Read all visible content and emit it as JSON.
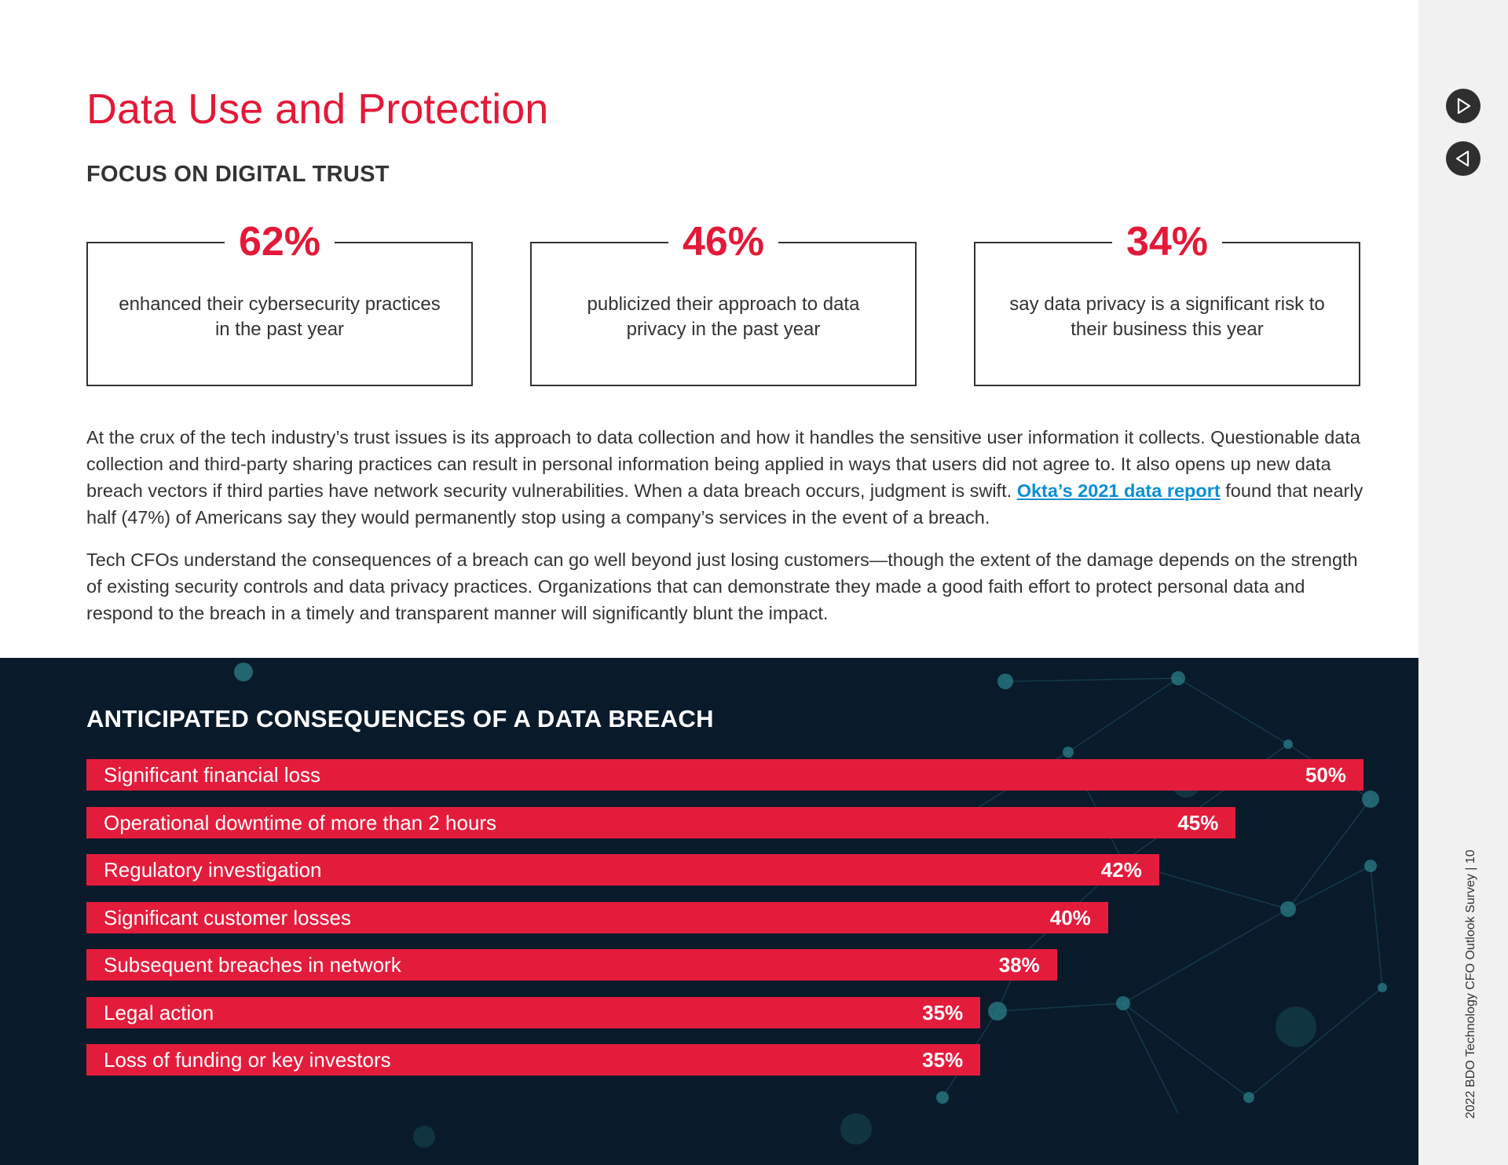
{
  "page": {
    "title": "Data Use and Protection",
    "subtitle": "FOCUS ON DIGITAL TRUST",
    "stats": [
      {
        "value": "62%",
        "description": "enhanced their cybersecurity practices in the past year"
      },
      {
        "value": "46%",
        "description": "publicized their approach to data privacy in the past year"
      },
      {
        "value": "34%",
        "description": "say data privacy is a significant risk to their business this year"
      }
    ],
    "paragraph1": {
      "before_link": "At the crux of the tech industry’s trust issues is its approach to data collection and how it handles the sensitive user information it collects. Questionable data collection and third-party sharing practices can result in personal information being applied in ways that users did not agree to. It also opens up new data breach vectors if third parties have network security vulnerabilities. When a data breach occurs, judgment is swift. ",
      "link_text": "Okta’s 2021 data report",
      "after_link": " found that nearly half (47%) of Americans say they would permanently stop using a company’s services in the event of a breach."
    },
    "paragraph2": "Tech CFOs understand the consequences of a breach can go well beyond just losing customers—though the extent of the damage depends on the strength of existing security controls and data privacy practices. Organizations that can demonstrate they made a good faith effort to protect personal data and respond to the breach in a timely and transparent manner will significantly blunt the impact.",
    "footer": "2022 BDO Technology CFO Outlook Survey | 10",
    "nav": {
      "next_icon": "play-next-icon",
      "prev_icon": "play-prev-icon"
    }
  },
  "colors": {
    "accent": "#e31937",
    "bar": "#e41c3c",
    "dark_bg": "#091a2b",
    "link": "#0a8fd4"
  },
  "chart_data": {
    "type": "bar",
    "orientation": "horizontal",
    "title": "ANTICIPATED CONSEQUENCES OF A DATA BREACH",
    "categories": [
      "Significant financial loss",
      "Operational downtime of more than 2 hours",
      "Regulatory investigation",
      "Significant customer losses",
      "Subsequent breaches in network",
      "Legal action",
      "Loss of funding or key investors"
    ],
    "values": [
      50,
      45,
      42,
      40,
      38,
      35,
      35
    ],
    "value_labels": [
      "50%",
      "45%",
      "42%",
      "40%",
      "38%",
      "35%",
      "35%"
    ],
    "xlim": [
      0,
      50
    ],
    "xlabel": "",
    "ylabel": "",
    "grid": false
  }
}
